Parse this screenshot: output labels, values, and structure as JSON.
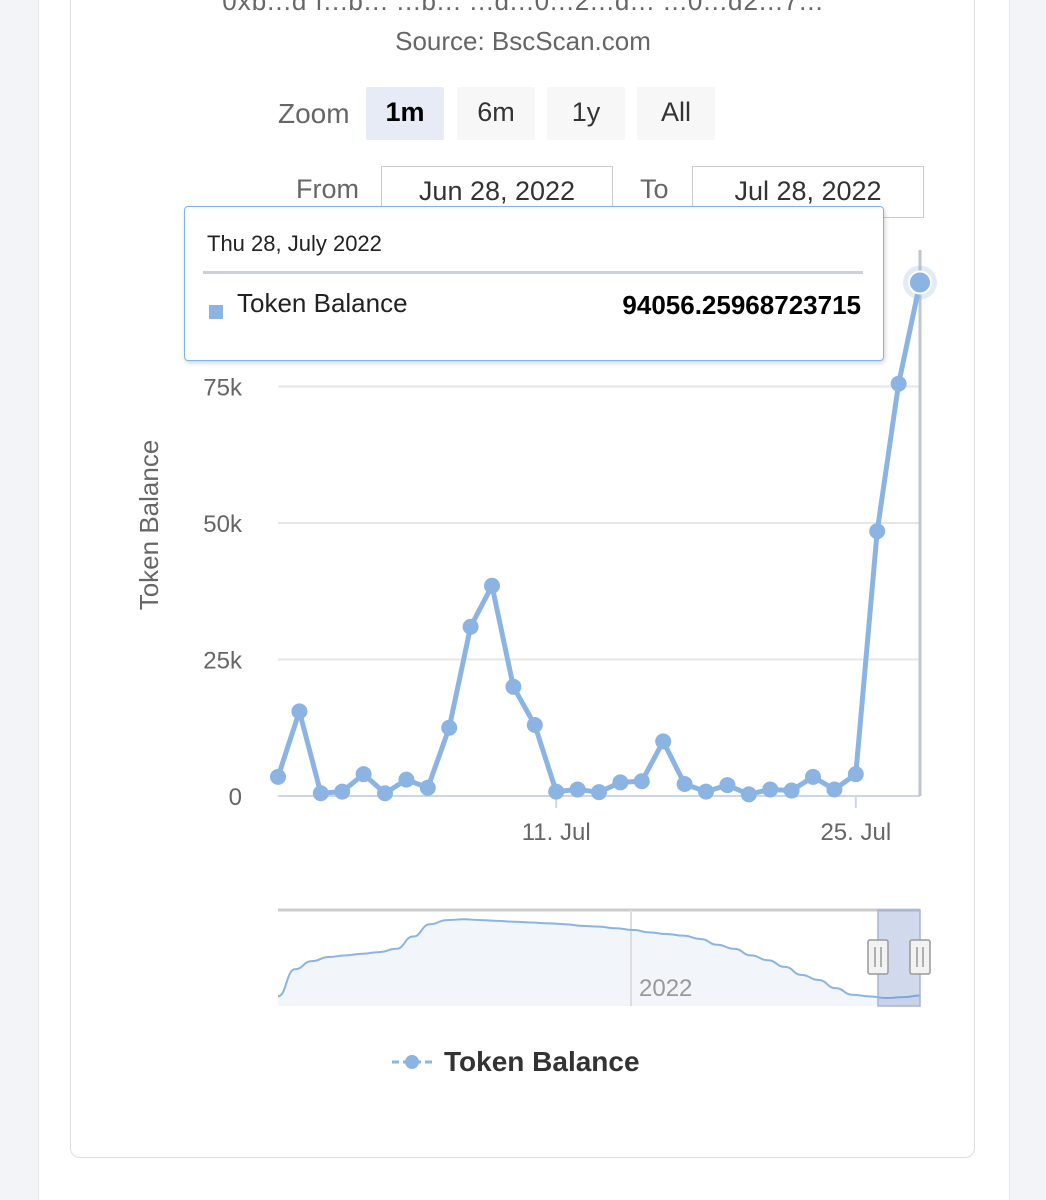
{
  "header": {
    "address_fragment": "0xb...d f...b... ...b... ...d...0...2...d... ...0...d2...7...",
    "source": "Source: BscScan.com"
  },
  "zoom": {
    "label": "Zoom",
    "buttons": [
      "1m",
      "6m",
      "1y",
      "All"
    ],
    "active": "1m"
  },
  "range": {
    "from_label": "From",
    "from_value": "Jun 28, 2022",
    "to_label": "To",
    "to_value": "Jul 28, 2022"
  },
  "tooltip": {
    "date": "Thu 28, July 2022",
    "series": "Token Balance",
    "value": "94056.25968723715"
  },
  "legend": {
    "label": "Token Balance"
  },
  "colors": {
    "series": "#8bb4e3",
    "grid": "#e6e6e6",
    "axis": "#666666",
    "navigator_fill": "#f2f5fa"
  },
  "chart_data": {
    "type": "line",
    "title": "",
    "xlabel": "",
    "ylabel": "Token Balance",
    "x_start": "Jun 28, 2022",
    "x_end": "Jul 28, 2022",
    "x_tick_labels": [
      "11. Jul",
      "25. Jul"
    ],
    "x_tick_day_index": [
      13,
      27
    ],
    "y_ticks": [
      0,
      25000,
      50000,
      75000
    ],
    "y_tick_labels": [
      "0",
      "25k",
      "50k",
      "75k"
    ],
    "ylim": [
      0,
      100000
    ],
    "series": [
      {
        "name": "Token Balance",
        "values": [
          3500,
          15500,
          500,
          800,
          4000,
          500,
          3000,
          1500,
          12500,
          31000,
          38500,
          20000,
          13000,
          800,
          1200,
          700,
          2500,
          2700,
          10000,
          2200,
          800,
          2000,
          300,
          1200,
          1000,
          3500,
          1200,
          4000,
          48500,
          75500,
          94056.26
        ]
      }
    ],
    "navigator": {
      "label": "2022",
      "values": [
        2,
        35,
        45,
        50,
        52,
        54,
        56,
        60,
        75,
        90,
        95,
        96,
        95,
        94,
        93,
        92,
        91,
        90,
        88,
        87,
        85,
        83,
        80,
        78,
        76,
        72,
        65,
        60,
        52,
        46,
        38,
        28,
        22,
        12,
        4,
        2,
        0,
        1,
        3
      ]
    }
  }
}
